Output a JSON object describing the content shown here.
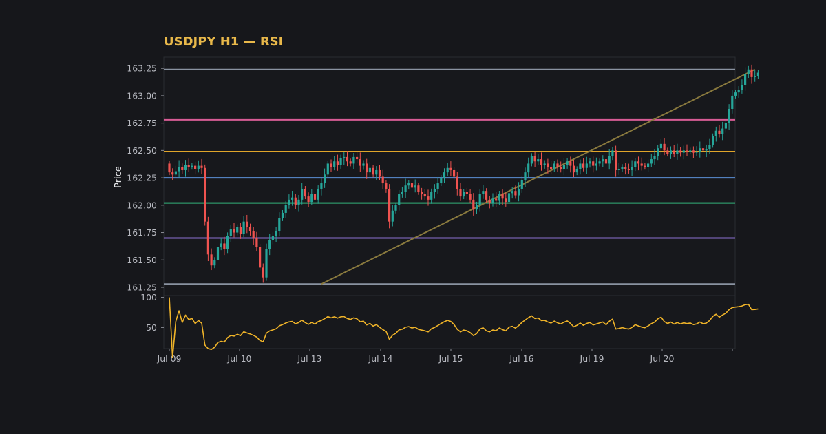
{
  "chart_data": {
    "type": "candlestick",
    "title": "USDJPY H1 — RSI",
    "title_color": "#e8b84a",
    "ylabel": "Price",
    "price_axis": {
      "ylim": [
        161.25,
        163.27
      ],
      "ticks": [
        161.25,
        161.5,
        161.75,
        162.0,
        162.25,
        162.5,
        162.75,
        163.0,
        163.25
      ],
      "tick_labels": [
        "161.25",
        "161.50",
        "161.75",
        "162.00",
        "162.25",
        "162.50",
        "162.75",
        "163.00",
        "163.25"
      ]
    },
    "rsi_axis": {
      "ylim": [
        15,
        103
      ],
      "ticks": [
        50,
        100
      ],
      "tick_labels": [
        "50",
        "100"
      ]
    },
    "x_axis": {
      "tick_labels": [
        "Jul 09",
        "Jul 10",
        "Jul 13",
        "Jul 14",
        "Jul 15",
        "Jul 16",
        "Jul 19",
        "Jul 20"
      ]
    },
    "levels": [
      {
        "value": 163.24,
        "color": "#8a93a1"
      },
      {
        "value": 162.78,
        "color": "#d95c96"
      },
      {
        "value": 162.49,
        "color": "#e0a52a"
      },
      {
        "value": 162.25,
        "color": "#5b8fd6"
      },
      {
        "value": 162.02,
        "color": "#33b07a"
      },
      {
        "value": 161.7,
        "color": "#8b6fd1"
      },
      {
        "value": 161.28,
        "color": "#8a93a1"
      }
    ],
    "trendline": {
      "from": [
        47,
        161.28
      ],
      "to": [
        181,
        163.24
      ],
      "color": "#8a7a3e"
    },
    "rsi_color": "#f0b429",
    "candle_up_color": "#26a69a",
    "candle_down_color": "#ef5350",
    "closes": [
      162.3,
      162.28,
      162.31,
      162.35,
      162.32,
      162.37,
      162.35,
      162.36,
      162.33,
      162.36,
      162.34,
      161.85,
      161.55,
      161.45,
      161.5,
      161.62,
      161.65,
      161.6,
      161.72,
      161.78,
      161.75,
      161.8,
      161.74,
      161.85,
      161.8,
      161.76,
      161.7,
      161.62,
      161.43,
      161.34,
      161.6,
      161.68,
      161.72,
      161.76,
      161.88,
      161.93,
      162.0,
      162.05,
      162.07,
      162.0,
      162.05,
      162.15,
      162.08,
      162.03,
      162.1,
      162.05,
      162.15,
      162.2,
      162.28,
      162.38,
      162.35,
      162.4,
      162.37,
      162.43,
      162.44,
      162.4,
      162.38,
      162.44,
      162.42,
      162.36,
      162.38,
      162.3,
      162.34,
      162.28,
      162.32,
      162.26,
      162.2,
      162.15,
      161.85,
      161.95,
      162.0,
      162.1,
      162.12,
      162.18,
      162.2,
      162.16,
      162.18,
      162.12,
      162.1,
      162.08,
      162.05,
      162.12,
      162.15,
      162.2,
      162.25,
      162.3,
      162.34,
      162.32,
      162.26,
      162.15,
      162.08,
      162.12,
      162.1,
      162.05,
      161.96,
      162.0,
      162.1,
      162.13,
      162.05,
      162.02,
      162.06,
      162.04,
      162.1,
      162.06,
      162.03,
      162.11,
      162.13,
      162.09,
      162.15,
      162.23,
      162.3,
      162.38,
      162.45,
      162.4,
      162.42,
      162.37,
      162.38,
      162.35,
      162.33,
      162.38,
      162.35,
      162.33,
      162.37,
      162.4,
      162.36,
      162.3,
      162.33,
      162.38,
      162.34,
      162.38,
      162.4,
      162.36,
      162.38,
      162.4,
      162.42,
      162.38,
      162.45,
      162.5,
      162.32,
      162.33,
      162.35,
      162.33,
      162.32,
      162.35,
      162.4,
      162.38,
      162.36,
      162.35,
      162.38,
      162.42,
      162.45,
      162.52,
      162.56,
      162.5,
      162.47,
      162.5,
      162.47,
      162.5,
      162.48,
      162.5,
      162.49,
      162.5,
      162.48,
      162.49,
      162.52,
      162.5,
      162.51,
      162.55,
      162.63,
      162.68,
      162.65,
      162.7,
      162.75,
      162.88,
      163.0,
      163.03,
      163.05,
      163.1,
      163.2,
      163.24,
      163.17,
      163.18,
      163.21
    ]
  }
}
